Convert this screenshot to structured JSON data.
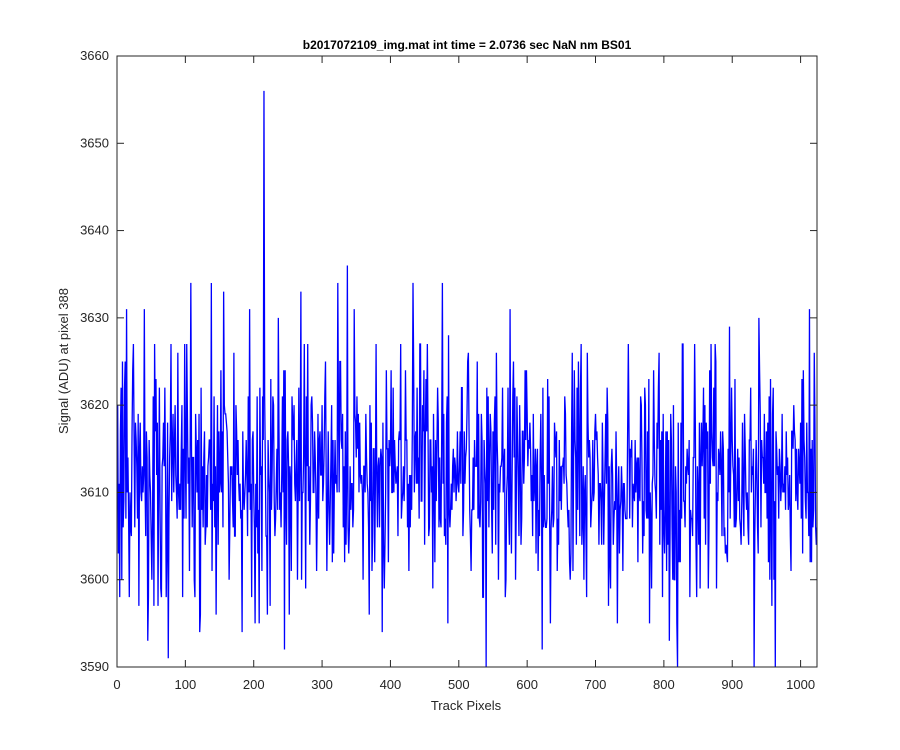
{
  "chart_data": {
    "type": "line",
    "title": "b2017072109_img.mat int time = 2.0736 sec  NaN nm BS01",
    "xlabel": "Track Pixels",
    "ylabel": "Signal (ADU) at pixel 388",
    "xlim": [
      0,
      1024
    ],
    "ylim": [
      3590,
      3660
    ],
    "xticks": [
      0,
      100,
      200,
      300,
      400,
      500,
      600,
      700,
      800,
      900,
      1000
    ],
    "yticks": [
      3590,
      3600,
      3610,
      3620,
      3630,
      3640,
      3650,
      3660
    ],
    "grid": false,
    "legend": "none",
    "series_color": "#0000ff",
    "series": [
      {
        "x_start": 1,
        "x_step": 1,
        "noise_mean": 3612,
        "noise_sd": 6.5,
        "seed": 20170721,
        "anchors": [
          [
            1,
            3620
          ],
          [
            3,
            3611
          ],
          [
            8,
            3625
          ],
          [
            14,
            3631
          ],
          [
            18,
            3598
          ],
          [
            40,
            3631
          ],
          [
            46,
            3598
          ],
          [
            55,
            3627
          ],
          [
            65,
            3598
          ],
          [
            75,
            3591
          ],
          [
            79,
            3627
          ],
          [
            96,
            3598
          ],
          [
            108,
            3634
          ],
          [
            122,
            3596
          ],
          [
            138,
            3634
          ],
          [
            145,
            3596
          ],
          [
            156,
            3633
          ],
          [
            183,
            3594
          ],
          [
            194,
            3631
          ],
          [
            208,
            3595
          ],
          [
            215,
            3656
          ],
          [
            220,
            3596
          ],
          [
            236,
            3630
          ],
          [
            245,
            3592
          ],
          [
            269,
            3633
          ],
          [
            305,
            3625
          ],
          [
            323,
            3634
          ],
          [
            337,
            3636
          ],
          [
            347,
            3631
          ],
          [
            388,
            3594
          ],
          [
            433,
            3634
          ],
          [
            476,
            3634
          ],
          [
            485,
            3628
          ],
          [
            535,
            3598
          ],
          [
            540,
            3590
          ],
          [
            575,
            3631
          ],
          [
            622,
            3592
          ],
          [
            663,
            3600
          ],
          [
            675,
            3625
          ],
          [
            779,
            3595
          ],
          [
            793,
            3626
          ],
          [
            808,
            3593
          ],
          [
            820,
            3590
          ],
          [
            845,
            3627
          ],
          [
            896,
            3629
          ],
          [
            932,
            3590
          ],
          [
            939,
            3630
          ],
          [
            963,
            3590
          ],
          [
            1013,
            3631
          ],
          [
            1020,
            3626
          ],
          [
            1024,
            3606
          ]
        ]
      }
    ]
  }
}
